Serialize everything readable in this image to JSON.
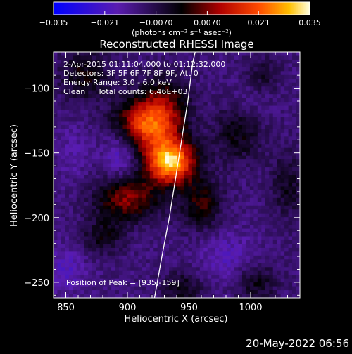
{
  "chart_data": {
    "type": "heatmap",
    "title": "Reconstructed RHESSI Image",
    "xlabel": "Heliocentric X (arcsec)",
    "ylabel": "Heliocentric Y (arcsec)",
    "xlim": [
      840,
      1040
    ],
    "ylim": [
      -262,
      -72
    ],
    "x_ticks": [
      850,
      900,
      950,
      1000
    ],
    "x_tick_labels": [
      "850",
      "900",
      "950",
      "1000"
    ],
    "y_ticks": [
      -100,
      -150,
      -200,
      -250
    ],
    "y_tick_labels": [
      "−100",
      "−150",
      "−200",
      "−250"
    ],
    "colorbar": {
      "range": [
        -0.035,
        0.035
      ],
      "ticks": [
        -0.035,
        -0.021,
        -0.007,
        0.007,
        0.021,
        0.035
      ],
      "tick_labels": [
        "−0.035",
        "−0.021",
        "−0.0070",
        "0.0070",
        "0.021",
        "0.035"
      ],
      "unit_label": "(photons cm⁻² s⁻¹ asec⁻²)"
    },
    "annotations": [
      "2-Apr-2015 01:11:04.000 to 01:12:32.000",
      "Detectors: 3F 5F 6F 7F 8F 9F, Att 0",
      "Energy Range: 3.0 - 6.0 keV",
      "Clean     Total counts: 6.46E+03"
    ],
    "peak_label": "Position of Peak = [935,-159]",
    "peak": [
      935,
      -159
    ],
    "limb_curve": [
      [
        922,
        -262
      ],
      [
        928,
        -230
      ],
      [
        934,
        -200
      ],
      [
        939,
        -170
      ],
      [
        944,
        -140
      ],
      [
        949,
        -110
      ],
      [
        953,
        -80
      ],
      [
        955,
        -72
      ]
    ],
    "sources": [
      {
        "x": 935,
        "y": -157,
        "sx": 14,
        "sy": 12,
        "amp": 0.042
      },
      {
        "x": 912,
        "y": -128,
        "sx": 16,
        "sy": 14,
        "amp": 0.026
      },
      {
        "x": 900,
        "y": -185,
        "sx": 18,
        "sy": 12,
        "amp": 0.02
      },
      {
        "x": 930,
        "y": -118,
        "sx": 14,
        "sy": 18,
        "amp": 0.018
      },
      {
        "x": 960,
        "y": -190,
        "sx": 12,
        "sy": 14,
        "amp": 0.014
      },
      {
        "x": 865,
        "y": -90,
        "sx": 14,
        "sy": 14,
        "amp": 0.012
      },
      {
        "x": 990,
        "y": -135,
        "sx": 14,
        "sy": 16,
        "amp": 0.011
      },
      {
        "x": 1005,
        "y": -250,
        "sx": 12,
        "sy": 10,
        "amp": 0.01
      },
      {
        "x": 945,
        "y": -255,
        "sx": 12,
        "sy": 10,
        "amp": 0.01
      },
      {
        "x": 880,
        "y": -215,
        "sx": 12,
        "sy": 10,
        "amp": 0.01
      },
      {
        "x": 1030,
        "y": -175,
        "sx": 10,
        "sy": 18,
        "amp": 0.009
      },
      {
        "x": 1010,
        "y": -90,
        "sx": 10,
        "sy": 10,
        "amp": 0.008
      },
      {
        "x": 895,
        "y": -150,
        "sx": 10,
        "sy": 14,
        "amp": -0.01
      },
      {
        "x": 980,
        "y": -230,
        "sx": 16,
        "sy": 14,
        "amp": -0.006
      },
      {
        "x": 850,
        "y": -240,
        "sx": 12,
        "sy": 12,
        "amp": -0.007
      },
      {
        "x": 855,
        "y": -150,
        "sx": 10,
        "sy": 16,
        "amp": -0.004
      },
      {
        "x": 1000,
        "y": -110,
        "sx": 12,
        "sy": 12,
        "amp": -0.003
      }
    ]
  },
  "footer": {
    "timestamp": "20-May-2022 06:56"
  }
}
